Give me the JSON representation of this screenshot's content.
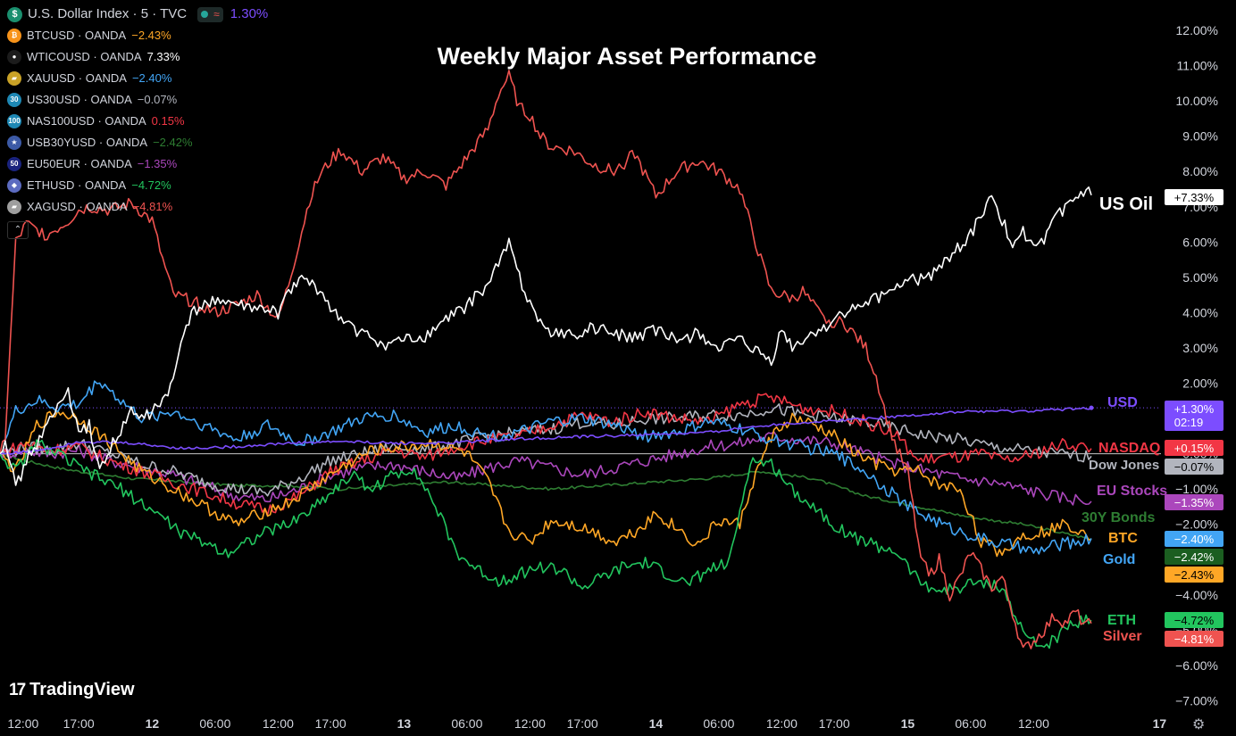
{
  "title": "Weekly Major Asset Performance",
  "brand": "TradingView",
  "legend": [
    {
      "icon": "dollar-icon",
      "glyph": "$",
      "bg": "#1a8f6e",
      "name": "U.S. Dollar Index · 5 · TVC",
      "value": "1.30%",
      "color": "#7c4dff",
      "main": true
    },
    {
      "icon": "bitcoin-icon",
      "glyph": "₿",
      "bg": "#f7931a",
      "name": "BTCUSD · OANDA",
      "value": "−2.43%",
      "color": "#ffa726"
    },
    {
      "icon": "oil-drop-icon",
      "glyph": "●",
      "bg": "#1c1c1c",
      "name": "WTICOUSD · OANDA",
      "value": "7.33%",
      "color": "#ffffff"
    },
    {
      "icon": "gold-bars-icon",
      "glyph": "▰",
      "bg": "#c9a227",
      "name": "XAUUSD · OANDA",
      "value": "−2.40%",
      "color": "#42a5f5"
    },
    {
      "icon": "dow-30-icon",
      "glyph": "30",
      "bg": "#1e88b4",
      "name": "US30USD · OANDA",
      "value": "−0.07%",
      "color": "#b2b5be"
    },
    {
      "icon": "nasdaq-100-icon",
      "glyph": "100",
      "bg": "#1e88b4",
      "name": "NAS100USD · OANDA",
      "value": "0.15%",
      "color": "#f23645"
    },
    {
      "icon": "us-flag-icon",
      "glyph": "★",
      "bg": "#3c5aa6",
      "name": "USB30YUSD · OANDA",
      "value": "−2.42%",
      "color": "#2e7d32"
    },
    {
      "icon": "eu-50-icon",
      "glyph": "50",
      "bg": "#1a237e",
      "name": "EU50EUR · OANDA",
      "value": "−1.35%",
      "color": "#ab47bc"
    },
    {
      "icon": "ethereum-icon",
      "glyph": "◆",
      "bg": "#5c6bc0",
      "name": "ETHUSD · OANDA",
      "value": "−4.72%",
      "color": "#22c55e"
    },
    {
      "icon": "silver-bars-icon",
      "glyph": "▰",
      "bg": "#9e9e9e",
      "name": "XAGUSD · OANDA",
      "value": "−4.81%",
      "color": "#ef5350"
    }
  ],
  "chart_data": {
    "type": "line",
    "title": "Weekly Major Asset Performance",
    "y_unit": "%",
    "ylim": [
      -7.5,
      12.5
    ],
    "y_ticks": [
      "12.00%",
      "11.00%",
      "10.00%",
      "9.00%",
      "8.00%",
      "7.00%",
      "6.00%",
      "5.00%",
      "4.00%",
      "3.00%",
      "2.00%",
      "1.00%",
      "0.00%",
      "−1.00%",
      "−2.00%",
      "−3.00%",
      "−4.00%",
      "−5.00%",
      "−6.00%",
      "−7.00%"
    ],
    "x_ticks": [
      {
        "label": "12:00",
        "t": -5.3
      },
      {
        "label": "17:00",
        "t": 0
      },
      {
        "label": "12",
        "t": 7
      },
      {
        "label": "06:00",
        "t": 13
      },
      {
        "label": "12:00",
        "t": 19
      },
      {
        "label": "17:00",
        "t": 24
      },
      {
        "label": "13",
        "t": 31
      },
      {
        "label": "06:00",
        "t": 37
      },
      {
        "label": "12:00",
        "t": 43
      },
      {
        "label": "17:00",
        "t": 48
      },
      {
        "label": "14",
        "t": 55
      },
      {
        "label": "06:00",
        "t": 61
      },
      {
        "label": "12:00",
        "t": 67
      },
      {
        "label": "17:00",
        "t": 72
      },
      {
        "label": "15",
        "t": 79
      },
      {
        "label": "06:00",
        "t": 85
      },
      {
        "label": "12:00",
        "t": 91
      },
      {
        "label": "17",
        "t": 103
      }
    ],
    "xlim": [
      -7.5,
      104
    ],
    "zero_line": true,
    "series": [
      {
        "name": "Silver",
        "label": "Silver",
        "end_badge": "−4.81%",
        "color": "#ef5350",
        "t": [
          -7.5,
          -7,
          -6,
          -5,
          -3,
          -1,
          0,
          1,
          3,
          5,
          7,
          8,
          9,
          11,
          13,
          15,
          17,
          19,
          20,
          21,
          22,
          23,
          24,
          25,
          27,
          29,
          31,
          33,
          35,
          37,
          39,
          40,
          41,
          42,
          43,
          44,
          45,
          47,
          49,
          51,
          53,
          55,
          57,
          59,
          61,
          63,
          65,
          66,
          67,
          68,
          69,
          71,
          73,
          75,
          76,
          77,
          78,
          79,
          80,
          81,
          82,
          83,
          84,
          85,
          87,
          88,
          89,
          90,
          91,
          92,
          93,
          94,
          95,
          96,
          96.5
        ],
        "v": [
          0,
          0.5,
          6.0,
          6.5,
          6.2,
          6.6,
          6.9,
          7.0,
          6.9,
          7.1,
          6.6,
          5.5,
          4.5,
          4.3,
          4.0,
          4.2,
          4.5,
          3.8,
          4.8,
          6.0,
          7.2,
          7.9,
          8.3,
          8.6,
          8.0,
          8.4,
          7.8,
          8.0,
          7.6,
          8.4,
          9.2,
          10.2,
          10.7,
          9.8,
          9.6,
          9.0,
          8.7,
          8.6,
          8.2,
          8.0,
          8.5,
          7.3,
          8.0,
          8.3,
          8.0,
          7.5,
          5.5,
          4.6,
          4.5,
          4.4,
          4.6,
          3.8,
          3.7,
          3.0,
          2.2,
          1.0,
          0.1,
          -0.5,
          -2.5,
          -3.5,
          -3.0,
          -4.0,
          -3.5,
          -2.8,
          -3.8,
          -3.5,
          -4.5,
          -5.6,
          -5.3,
          -5.0,
          -4.6,
          -4.8,
          -4.5,
          -4.9,
          -4.81
        ]
      },
      {
        "name": "US Oil",
        "label": "US Oil",
        "end_badge": "+7.33%",
        "color": "#ffffff",
        "t": [
          -7.5,
          -7,
          -6,
          -5,
          -3,
          -1,
          0,
          1,
          2,
          3,
          4,
          5,
          6,
          7,
          8,
          9,
          10,
          11,
          13,
          15,
          17,
          19,
          20,
          21,
          23,
          25,
          27,
          29,
          31,
          33,
          35,
          37,
          39,
          41,
          42,
          43,
          44,
          45,
          46,
          47,
          49,
          51,
          53,
          55,
          57,
          59,
          61,
          63,
          65,
          66,
          67,
          68,
          69,
          71,
          73,
          75,
          77,
          79,
          81,
          83,
          85,
          86,
          87,
          88,
          89,
          90,
          91,
          92,
          93,
          94,
          95,
          96,
          96.5
        ],
        "v": [
          0,
          0.5,
          -1.0,
          -0.2,
          0.8,
          1.8,
          0.5,
          0.8,
          -0.5,
          0.2,
          0.6,
          1.2,
          1.0,
          1.2,
          1.5,
          2.0,
          3.5,
          4.0,
          4.4,
          4.2,
          4.1,
          4.0,
          4.5,
          5.0,
          4.6,
          3.8,
          3.4,
          3.1,
          3.2,
          3.3,
          3.8,
          4.2,
          4.8,
          6.0,
          5.0,
          4.3,
          3.8,
          3.3,
          3.5,
          3.3,
          3.6,
          3.4,
          3.3,
          3.5,
          3.2,
          3.4,
          3.0,
          3.2,
          2.8,
          2.6,
          3.5,
          3.0,
          3.2,
          3.6,
          4.0,
          4.2,
          4.6,
          4.9,
          5.0,
          5.6,
          6.2,
          6.8,
          7.2,
          6.6,
          6.0,
          6.3,
          5.8,
          6.0,
          6.6,
          7.0,
          7.2,
          7.45,
          7.33
        ]
      },
      {
        "name": "USD",
        "label": "USD",
        "end_badge": "+1.30%",
        "time_badge": "02:19",
        "color": "#7c4dff",
        "t": [
          -7.5,
          -5,
          -2,
          0,
          5,
          10,
          15,
          20,
          25,
          30,
          35,
          40,
          45,
          50,
          55,
          60,
          65,
          70,
          75,
          80,
          85,
          90,
          96.5
        ],
        "v": [
          0,
          0.05,
          0.2,
          0.35,
          0.3,
          0.15,
          0.2,
          0.3,
          0.35,
          0.3,
          0.3,
          0.4,
          0.45,
          0.5,
          0.55,
          0.6,
          0.8,
          0.9,
          1.0,
          1.1,
          1.2,
          1.2,
          1.3
        ]
      },
      {
        "name": "NASDAQ",
        "label": "NASDAQ",
        "end_badge": "+0.15%",
        "color": "#f23645",
        "t": [
          -7.5,
          -5,
          -3,
          0,
          3,
          6,
          9,
          12,
          15,
          18,
          21,
          24,
          27,
          30,
          33,
          36,
          39,
          42,
          45,
          48,
          51,
          54,
          57,
          60,
          63,
          66,
          69,
          72,
          75,
          78,
          80,
          82,
          84,
          86,
          88,
          90,
          92,
          94,
          96.5
        ],
        "v": [
          0,
          0.3,
          0.1,
          0.2,
          -0.2,
          -0.5,
          -0.8,
          -1.1,
          -1.4,
          -1.6,
          -1.2,
          -0.5,
          -0.2,
          0.1,
          -0.1,
          0.2,
          0.4,
          0.5,
          0.8,
          1.1,
          0.9,
          1.2,
          1.0,
          0.9,
          1.4,
          1.6,
          1.3,
          1.2,
          0.9,
          0.5,
          -0.2,
          -0.1,
          -0.1,
          0.0,
          -0.2,
          -0.1,
          0.1,
          0.3,
          0.15
        ]
      },
      {
        "name": "Dow Jones",
        "label": "Dow Jones",
        "end_badge": "−0.07%",
        "color": "#b2b5be",
        "t": [
          -7.5,
          -5,
          -3,
          0,
          3,
          6,
          9,
          12,
          15,
          18,
          21,
          24,
          27,
          30,
          33,
          36,
          39,
          42,
          45,
          48,
          51,
          54,
          57,
          60,
          63,
          66,
          69,
          72,
          75,
          78,
          81,
          84,
          87,
          90,
          93,
          96.5
        ],
        "v": [
          0,
          0.2,
          0.1,
          0.3,
          0.0,
          -0.3,
          -0.5,
          -0.8,
          -1.0,
          -1.1,
          -0.7,
          -0.2,
          0.0,
          0.2,
          0.1,
          0.3,
          0.5,
          0.6,
          0.7,
          0.9,
          0.8,
          1.0,
          1.0,
          1.1,
          1.1,
          1.3,
          1.1,
          1.0,
          0.9,
          0.7,
          0.5,
          0.4,
          0.2,
          0.1,
          0.0,
          -0.07
        ]
      },
      {
        "name": "EU Stocks",
        "label": "EU Stocks",
        "end_badge": "−1.35%",
        "color": "#ab47bc",
        "t": [
          -7.5,
          -5,
          -3,
          0,
          3,
          6,
          9,
          12,
          15,
          18,
          21,
          24,
          27,
          30,
          33,
          36,
          39,
          42,
          45,
          48,
          51,
          54,
          57,
          60,
          63,
          66,
          69,
          72,
          75,
          78,
          81,
          84,
          87,
          90,
          93,
          96.5
        ],
        "v": [
          0,
          0.1,
          0.0,
          0.1,
          -0.2,
          -0.4,
          -0.6,
          -0.9,
          -1.2,
          -1.3,
          -1.0,
          -0.6,
          -0.4,
          -0.3,
          -0.5,
          -0.7,
          -0.4,
          -0.2,
          -0.4,
          -0.6,
          -0.4,
          -0.2,
          0.0,
          0.2,
          0.3,
          0.5,
          0.4,
          0.3,
          0.0,
          -0.3,
          -0.5,
          -0.7,
          -0.8,
          -1.0,
          -1.2,
          -1.35
        ]
      },
      {
        "name": "30Y Bonds",
        "label": "30Y Bonds",
        "end_badge": "−2.42%",
        "color": "#2e7d32",
        "t": [
          -7.5,
          -5,
          -2,
          0,
          5,
          10,
          15,
          20,
          25,
          30,
          35,
          40,
          45,
          50,
          55,
          60,
          65,
          70,
          75,
          80,
          85,
          90,
          93,
          96.5
        ],
        "v": [
          0,
          -0.2,
          -0.4,
          -0.5,
          -0.7,
          -0.8,
          -0.9,
          -0.9,
          -1.0,
          -0.9,
          -0.8,
          -0.9,
          -1.0,
          -0.9,
          -0.8,
          -0.7,
          -0.5,
          -0.7,
          -1.2,
          -1.5,
          -1.8,
          -2.0,
          -2.2,
          -2.42
        ]
      },
      {
        "name": "BTC",
        "label": "BTC",
        "end_badge": "−2.43%",
        "color": "#ffa726",
        "t": [
          -7.5,
          -6,
          -4,
          -2,
          0,
          3,
          6,
          9,
          12,
          15,
          18,
          20,
          22,
          25,
          28,
          31,
          34,
          37,
          39,
          41,
          43,
          45,
          47,
          49,
          51,
          53,
          55,
          57,
          59,
          61,
          63,
          64,
          66,
          68,
          70,
          72,
          74,
          76,
          78,
          80,
          82,
          84,
          86,
          88,
          90,
          92,
          94,
          96,
          96.5
        ],
        "v": [
          0,
          -0.5,
          0.8,
          1.2,
          1.0,
          0.3,
          -0.5,
          -1.0,
          -1.5,
          -2.0,
          -1.6,
          -1.4,
          -1.0,
          -0.4,
          0.1,
          0.2,
          0.3,
          0.0,
          -0.8,
          -2.2,
          -2.5,
          -1.9,
          -2.0,
          -2.2,
          -2.5,
          -2.2,
          -1.7,
          -2.1,
          -2.6,
          -1.9,
          -2.0,
          -1.0,
          0.5,
          1.0,
          0.8,
          0.5,
          0.0,
          -0.3,
          -0.5,
          -0.5,
          -0.9,
          -1.0,
          -2.5,
          -2.8,
          -2.3,
          -2.2,
          -2.0,
          -2.2,
          -2.43
        ]
      },
      {
        "name": "Gold",
        "label": "Gold",
        "end_badge": "−2.40%",
        "color": "#42a5f5",
        "t": [
          -7.5,
          -6,
          -4,
          -2,
          0,
          2,
          4,
          6,
          9,
          12,
          15,
          18,
          21,
          24,
          27,
          30,
          33,
          36,
          39,
          42,
          45,
          48,
          51,
          54,
          57,
          60,
          63,
          66,
          69,
          72,
          75,
          77,
          79,
          81,
          83,
          85,
          87,
          89,
          91,
          93,
          95,
          96.5
        ],
        "v": [
          0,
          1.2,
          1.5,
          1.3,
          1.4,
          2.1,
          1.5,
          1.0,
          1.2,
          0.8,
          0.4,
          0.8,
          0.3,
          0.6,
          1.0,
          1.1,
          0.6,
          0.8,
          0.5,
          0.6,
          0.9,
          1.0,
          0.8,
          0.5,
          0.6,
          0.9,
          0.7,
          0.4,
          0.2,
          0.0,
          -0.5,
          -1.0,
          -1.5,
          -1.8,
          -2.1,
          -2.3,
          -2.5,
          -2.6,
          -2.8,
          -2.6,
          -2.5,
          -2.4
        ]
      },
      {
        "name": "ETH",
        "label": "ETH",
        "end_badge": "−4.72%",
        "color": "#22c55e",
        "t": [
          -7.5,
          -6,
          -4,
          -2,
          0,
          2,
          4,
          6,
          8,
          10,
          12,
          14,
          16,
          18,
          20,
          22,
          24,
          26,
          28,
          30,
          32,
          34,
          36,
          38,
          40,
          42,
          44,
          46,
          48,
          50,
          52,
          54,
          56,
          58,
          60,
          62,
          64,
          66,
          68,
          70,
          72,
          74,
          76,
          78,
          80,
          82,
          84,
          86,
          88,
          90,
          92,
          94,
          96,
          96.5
        ],
        "v": [
          0,
          -0.5,
          0.3,
          0.0,
          -0.4,
          -0.7,
          -1.0,
          -1.4,
          -1.8,
          -2.3,
          -2.5,
          -2.8,
          -2.5,
          -2.2,
          -2.0,
          -1.6,
          -1.1,
          -0.6,
          -1.0,
          -0.6,
          -0.4,
          -1.5,
          -2.8,
          -3.3,
          -3.6,
          -3.4,
          -3.2,
          -3.3,
          -3.8,
          -3.5,
          -3.2,
          -3.1,
          -3.4,
          -3.7,
          -3.3,
          -3.1,
          -0.2,
          -0.3,
          -1.0,
          -1.5,
          -2.0,
          -2.4,
          -2.6,
          -2.8,
          -3.6,
          -3.9,
          -3.8,
          -3.6,
          -3.8,
          -5.1,
          -5.5,
          -5.0,
          -4.6,
          -4.72
        ]
      }
    ]
  }
}
